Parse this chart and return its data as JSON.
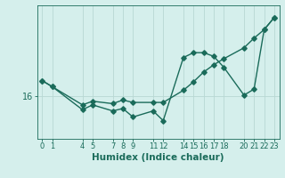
{
  "title": "",
  "xlabel": "Humidex (Indice chaleur)",
  "background_color": "#d5efec",
  "line_color": "#1a6b5a",
  "grid_color": "#b8d8d4",
  "x_ticks": [
    0,
    1,
    4,
    5,
    7,
    8,
    9,
    11,
    12,
    14,
    15,
    16,
    17,
    18,
    20,
    21,
    22,
    23
  ],
  "ytick_labels": [
    "16"
  ],
  "ytick_values": [
    16
  ],
  "ylim": [
    12.5,
    23.5
  ],
  "xlim": [
    -0.5,
    23.5
  ],
  "line1_x": [
    0,
    1,
    4,
    5,
    7,
    8,
    9,
    11,
    12,
    14,
    15,
    16,
    17,
    18,
    20,
    21,
    22,
    23
  ],
  "line1_y": [
    17.3,
    16.8,
    14.9,
    15.3,
    14.8,
    15.0,
    14.3,
    14.8,
    14.0,
    19.2,
    19.6,
    19.6,
    19.3,
    18.4,
    16.1,
    16.6,
    21.5,
    22.5
  ],
  "line2_x": [
    0,
    1,
    4,
    5,
    7,
    8,
    9,
    11,
    12,
    14,
    15,
    16,
    17,
    18,
    20,
    21,
    22,
    23
  ],
  "line2_y": [
    17.3,
    16.8,
    15.3,
    15.6,
    15.4,
    15.7,
    15.5,
    15.5,
    15.5,
    16.5,
    17.2,
    18.0,
    18.6,
    19.1,
    20.0,
    20.8,
    21.5,
    22.5
  ],
  "marker": "D",
  "markersize": 2.8,
  "linewidth": 1.0,
  "tick_fontsize": 6,
  "label_fontsize": 7.5
}
